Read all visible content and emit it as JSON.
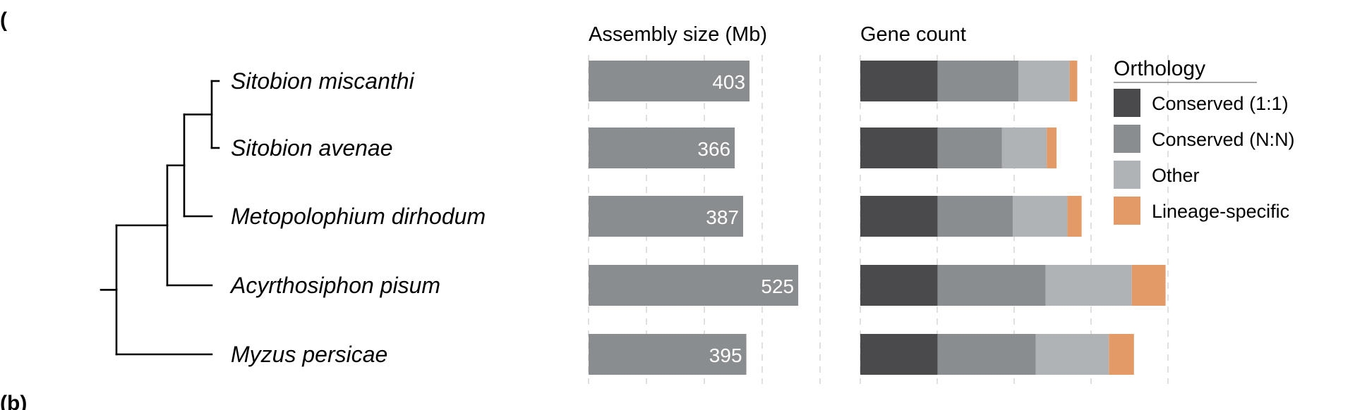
{
  "panel_labels": [
    "(",
    "(b)"
  ],
  "chart_data": [
    {
      "type": "tree",
      "taxa": [
        "Sitobion miscanthi",
        "Sitobion avenae",
        "Metopolophium dirhodum",
        "Acyrthosiphon pisum",
        "Myzus persicae"
      ]
    },
    {
      "type": "bar",
      "title": "Assembly size (Mb)",
      "categories": [
        "Sitobion miscanthi",
        "Sitobion avenae",
        "Metopolophium dirhodum",
        "Acyrthosiphon pisum",
        "Myzus persicae"
      ],
      "values": [
        403,
        366,
        387,
        525,
        395
      ],
      "data_labels": [
        "403",
        "366",
        "387",
        "525",
        "395"
      ],
      "color": "#8a8d90",
      "grid": true
    },
    {
      "type": "bar",
      "stacked": true,
      "title": "Gene count",
      "categories": [
        "Sitobion miscanthi",
        "Sitobion avenae",
        "Metopolophium dirhodum",
        "Acyrthosiphon pisum",
        "Myzus persicae"
      ],
      "legend_title": "Orthology",
      "legend_position": "right",
      "series": [
        {
          "name": "Conserved (1:1)",
          "color": "#4a4a4c",
          "values": [
            7100,
            7100,
            7100,
            7100,
            7100
          ]
        },
        {
          "name": "Conserved (N:N)",
          "color": "#8a8d90",
          "values": [
            7400,
            5900,
            6900,
            9900,
            9000
          ]
        },
        {
          "name": "Other",
          "color": "#b0b3b6",
          "values": [
            4700,
            4100,
            5000,
            7900,
            6700
          ]
        },
        {
          "name": "Lineage-specific",
          "color": "#e39a67",
          "values": [
            700,
            900,
            1300,
            3100,
            2300
          ]
        }
      ],
      "grid": true
    }
  ]
}
